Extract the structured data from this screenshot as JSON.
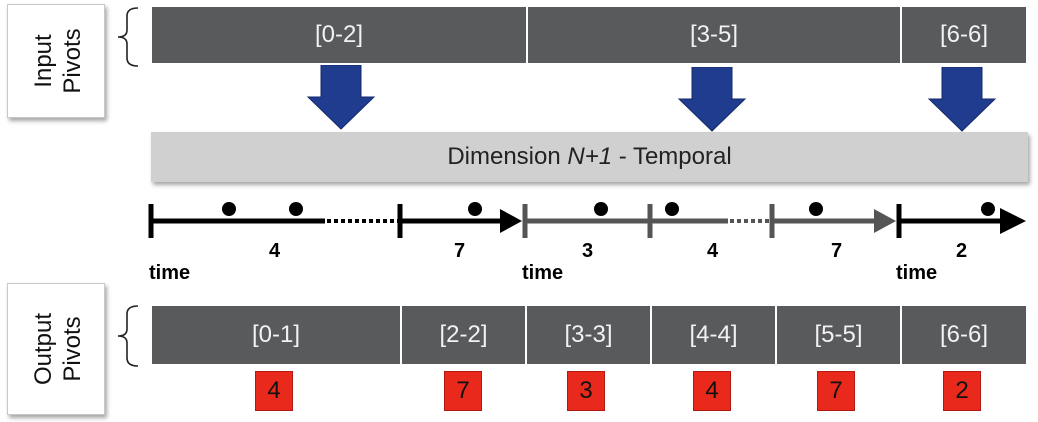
{
  "input_label": {
    "line1": "Input",
    "line2": "Pivots"
  },
  "output_label": {
    "line1": "Output",
    "line2": "Pivots"
  },
  "input_pivots": [
    "[0-2]",
    "[3-5]",
    "[6-6]"
  ],
  "dimension": {
    "prefix": "Dimension ",
    "var": "N+1",
    "suffix": " - Temporal"
  },
  "timeline": {
    "time_label": "time",
    "counts": [
      "4",
      "7",
      "3",
      "4",
      "7",
      "2"
    ]
  },
  "output_pivots": [
    "[0-1]",
    "[2-2]",
    "[3-3]",
    "[4-4]",
    "[5-5]",
    "[6-6]"
  ],
  "badges": [
    "4",
    "7",
    "3",
    "4",
    "7",
    "2"
  ],
  "colors": {
    "pivot_bar": "#595a5c",
    "dimension_bar": "#d0d0d0",
    "arrow": "#1f3c8f",
    "badge": "#e8291c",
    "timeline_black": "#000000",
    "timeline_gray": "#555555"
  }
}
